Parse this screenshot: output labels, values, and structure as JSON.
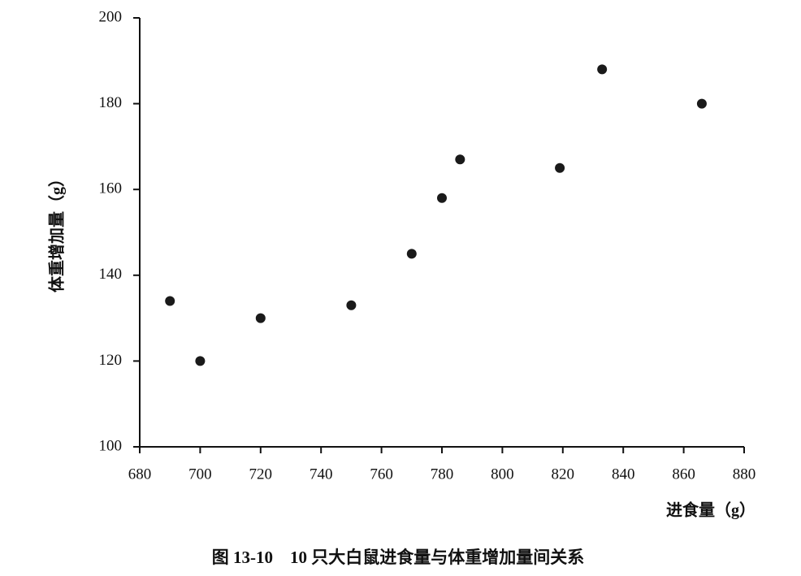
{
  "chart_data": {
    "type": "scatter",
    "title": "图 13-10　10 只大白鼠进食量与体重增加量间关系",
    "xlabel": "进食量（g）",
    "ylabel": "体重增加量（g）",
    "x": [
      690,
      700,
      720,
      750,
      770,
      780,
      786,
      819,
      833,
      866
    ],
    "values": [
      134,
      120,
      130,
      133,
      145,
      158,
      167,
      165,
      188,
      180
    ],
    "color": "#1a1a1a",
    "xlim": [
      680,
      880
    ],
    "xticks": [
      680,
      700,
      720,
      740,
      760,
      780,
      800,
      820,
      840,
      860,
      880
    ],
    "ylim": [
      100,
      200
    ],
    "yticks": [
      100,
      120,
      140,
      160,
      180,
      200
    ],
    "grid": false
  }
}
